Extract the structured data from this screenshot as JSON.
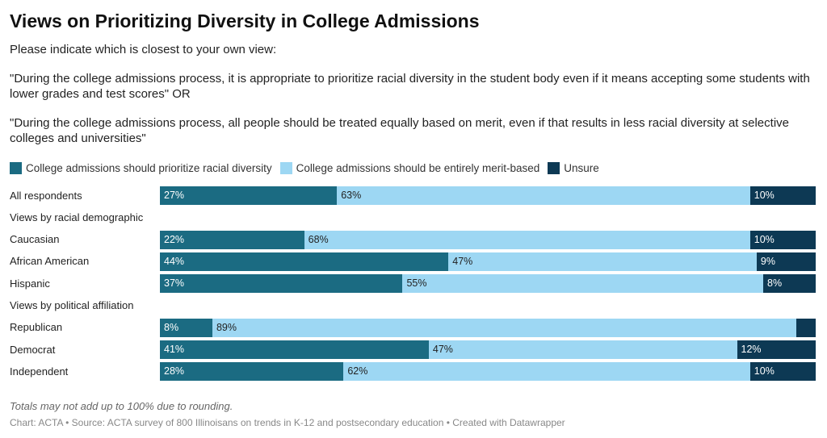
{
  "colors": {
    "diversity": "#1b6b82",
    "merit": "#9dd7f3",
    "unsure": "#0d3954"
  },
  "question": {
    "intro": "Please indicate which is closest to your own view:",
    "option1": "\"During the college admissions process, it is appropriate to prioritize racial diversity in the student body even if it means accepting some students with lower grades and test scores\" OR",
    "option2": "\"During the college admissions process, all people should be treated equally based on merit, even if that results in less racial diversity at selective colleges and universities\""
  },
  "chart_data": {
    "type": "bar",
    "orientation": "horizontal",
    "stacked": true,
    "title": "Views on Prioritizing Diversity in College Admissions",
    "legend": [
      "College admissions should prioritize racial diversity",
      "College admissions should be entirely merit-based",
      "Unsure"
    ],
    "rows": [
      {
        "kind": "bar",
        "label": "All respondents",
        "values": [
          27,
          63,
          10
        ],
        "labels": [
          "27%",
          "63%",
          "10%"
        ]
      },
      {
        "kind": "group",
        "label": "Views by racial demographic"
      },
      {
        "kind": "bar",
        "label": "Caucasian",
        "values": [
          22,
          68,
          10
        ],
        "labels": [
          "22%",
          "68%",
          "10%"
        ]
      },
      {
        "kind": "bar",
        "label": "African American",
        "values": [
          44,
          47,
          9
        ],
        "labels": [
          "44%",
          "47%",
          "9%"
        ]
      },
      {
        "kind": "bar",
        "label": "Hispanic",
        "values": [
          37,
          55,
          8
        ],
        "labels": [
          "37%",
          "55%",
          "8%"
        ]
      },
      {
        "kind": "group",
        "label": "Views by political affiliation"
      },
      {
        "kind": "bar",
        "label": "Republican",
        "values": [
          8,
          89,
          3
        ],
        "labels": [
          "8%",
          "89%",
          ""
        ]
      },
      {
        "kind": "bar",
        "label": "Democrat",
        "values": [
          41,
          47,
          12
        ],
        "labels": [
          "41%",
          "47%",
          "12%"
        ]
      },
      {
        "kind": "bar",
        "label": "Independent",
        "values": [
          28,
          62,
          10
        ],
        "labels": [
          "28%",
          "62%",
          "10%"
        ]
      }
    ],
    "note": "Totals may not add up to 100% due to rounding.",
    "source": "Chart: ACTA • Source: ACTA survey of 800 Illinoisans on trends in K-12 and postsecondary education • Created with Datawrapper"
  }
}
